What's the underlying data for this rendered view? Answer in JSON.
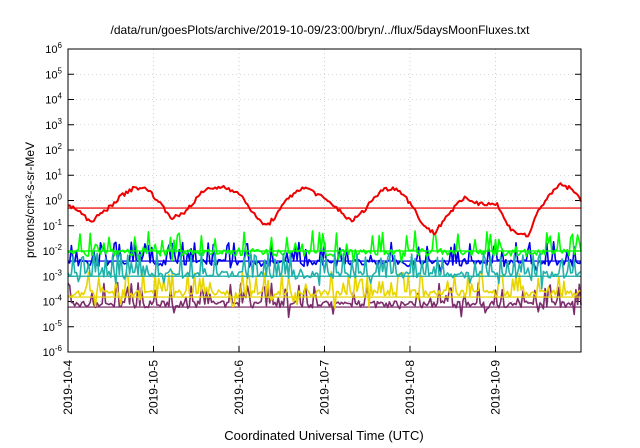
{
  "chart_data": {
    "type": "line",
    "title": "/data/run/goesPlots/archive/2019-10-09/23:00/bryn/../flux/5daysMoonFluxes.txt",
    "xlabel": "Coordinated Universal Time (UTC)",
    "ylabel": "protons/cm²-s-sr-MeV",
    "y_scale": "log",
    "ylim": [
      1e-06,
      1000000.0
    ],
    "xlim": [
      "2019-10-04",
      "2019-10-10"
    ],
    "grid": true,
    "x_ticks": [
      "2019-10-4",
      "2019-10-5",
      "2019-10-6",
      "2019-10-7",
      "2019-10-8",
      "2019-10-9"
    ],
    "y_ticks": [
      {
        "base": "10",
        "exp": "-6"
      },
      {
        "base": "10",
        "exp": "-5"
      },
      {
        "base": "10",
        "exp": "-4"
      },
      {
        "base": "10",
        "exp": "-3"
      },
      {
        "base": "10",
        "exp": "-2"
      },
      {
        "base": "10",
        "exp": "-1"
      },
      {
        "base": "10",
        "exp": "0"
      },
      {
        "base": "10",
        "exp": "1"
      },
      {
        "base": "10",
        "exp": "2"
      },
      {
        "base": "10",
        "exp": "3"
      },
      {
        "base": "10",
        "exp": "4"
      },
      {
        "base": "10",
        "exp": "5"
      },
      {
        "base": "10",
        "exp": "6"
      }
    ],
    "series": [
      {
        "color": "#7b2d6b",
        "base": 8e-05,
        "noise": 6e-05,
        "baseline": 6e-05
      },
      {
        "color": "#e8d400",
        "base": 0.00022,
        "noise": 0.0002,
        "baseline": 0.00015
      },
      {
        "color": "#0000ee",
        "base": 0.0035,
        "noise": 0.004,
        "baseline": 0.004
      },
      {
        "color": "#00ff00",
        "base": 0.009,
        "noise": 0.03,
        "baseline": 0.01
      },
      {
        "color": "#20b2aa",
        "base": 0.0012,
        "noise": 0.002,
        "baseline": 0.001
      },
      {
        "color": "#ee0000",
        "base": 0.6,
        "noise": 3.0,
        "baseline": 0.5
      }
    ],
    "red_profile_values": [
      0.7,
      0.4,
      0.15,
      0.25,
      0.6,
      1.4,
      2.8,
      3.5,
      2.0,
      0.6,
      0.2,
      0.3,
      0.9,
      2.5,
      3.2,
      3.5,
      2.4,
      0.9,
      0.2,
      0.1,
      0.3,
      1.2,
      2.8,
      3.0,
      1.6,
      0.8,
      0.4,
      0.15,
      0.3,
      1.0,
      2.6,
      3.3,
      2.0,
      0.5,
      0.1,
      0.05,
      0.2,
      0.6,
      1.3,
      0.8,
      0.8,
      0.7,
      0.1,
      0.05,
      0.04,
      0.5,
      1.5,
      4.5,
      3.0,
      1.1
    ]
  }
}
